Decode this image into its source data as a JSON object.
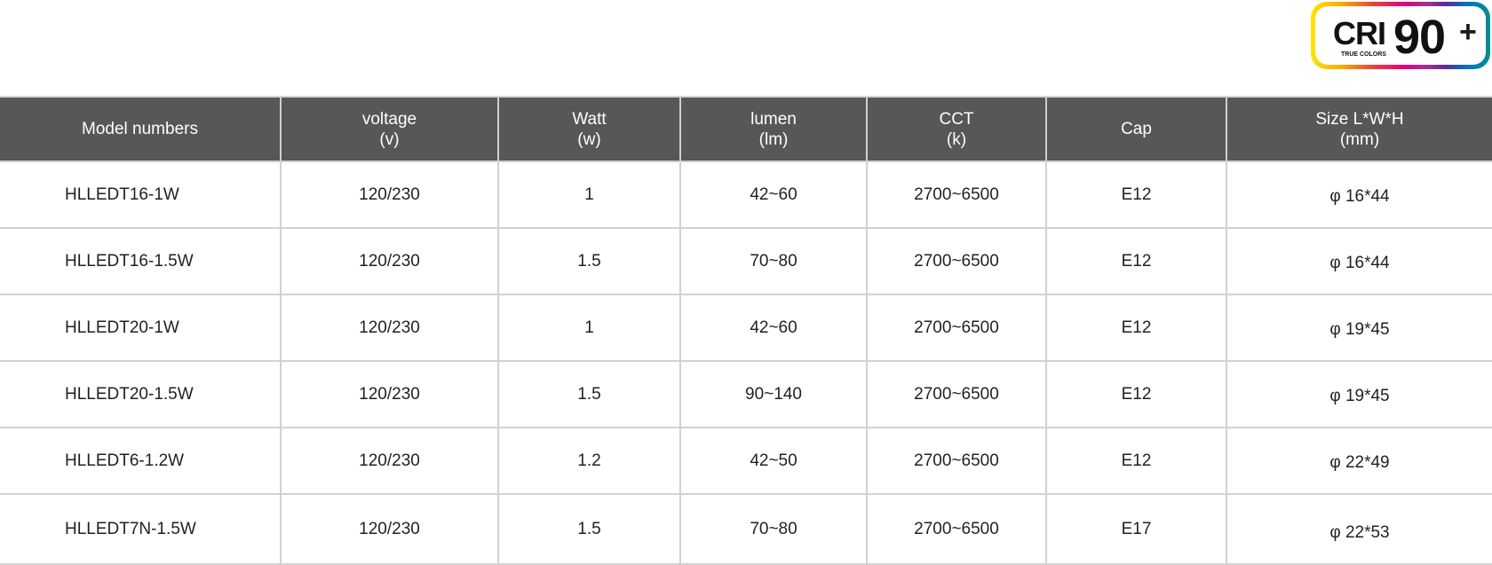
{
  "badge": {
    "cri": "CRI",
    "tagline": "TRUE COLORS",
    "value": "90",
    "plus": "+"
  },
  "table": {
    "headers": [
      {
        "line1": "Model numbers",
        "line2": ""
      },
      {
        "line1": "voltage",
        "line2": "(v)"
      },
      {
        "line1": "Watt",
        "line2": "(w)"
      },
      {
        "line1": "lumen",
        "line2": "(lm)"
      },
      {
        "line1": "CCT",
        "line2": "(k)"
      },
      {
        "line1": "Cap",
        "line2": ""
      },
      {
        "line1": "Size L*W*H",
        "line2": "(mm)"
      }
    ],
    "rows": [
      [
        "HLLEDT16-1W",
        "120/230",
        "1",
        "42~60",
        "2700~6500",
        "E12",
        "φ 16*44"
      ],
      [
        "HLLEDT16-1.5W",
        "120/230",
        "1.5",
        "70~80",
        "2700~6500",
        "E12",
        "φ 16*44"
      ],
      [
        "HLLEDT20-1W",
        "120/230",
        "1",
        "42~60",
        "2700~6500",
        "E12",
        "φ 19*45"
      ],
      [
        "HLLEDT20-1.5W",
        "120/230",
        "1.5",
        "90~140",
        "2700~6500",
        "E12",
        "φ 19*45"
      ],
      [
        "HLLEDT6-1.2W",
        "120/230",
        "1.2",
        "42~50",
        "2700~6500",
        "E12",
        "φ 22*49"
      ],
      [
        "HLLEDT7N-1.5W",
        "120/230",
        "1.5",
        "70~80",
        "2700~6500",
        "E17",
        "φ 22*53"
      ]
    ]
  }
}
